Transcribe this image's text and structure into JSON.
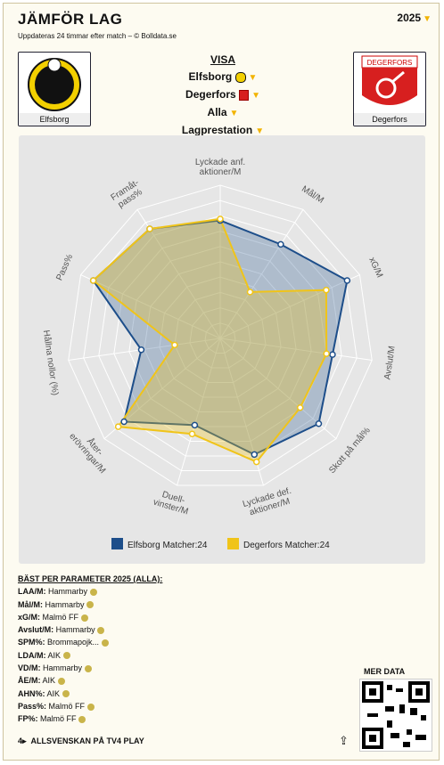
{
  "header": {
    "title": "JÄMFÖR LAG",
    "subtitle": "Uppdateras 24 timmar efter match – © Bolldata.se",
    "year": "2025"
  },
  "teams": {
    "left": {
      "name": "Elfsborg",
      "logo_text": "Elfsborg"
    },
    "right": {
      "name": "Degerfors",
      "logo_text": "DEGERFORS"
    }
  },
  "visa": {
    "heading": "VISA",
    "team1": "Elfsborg",
    "team2": "Degerfors",
    "filter": "Alla",
    "mode": "Lagprestation"
  },
  "chart_data": {
    "type": "radar",
    "axes": [
      "Lyckade anf. aktioner/M",
      "Mål/M",
      "xG/M",
      "Avslut/M",
      "Skott på mål%",
      "Lyckade def. aktioner/M",
      "Duell-vinster/M",
      "Åter-erövringar/M",
      "Hållna nollor (%)",
      "Pass%",
      "Framåt-pass%"
    ],
    "rmax": 10,
    "series": [
      {
        "name": "Elfsborg Matcher:24",
        "color": "#1d4e8a",
        "values": [
          7.7,
          7.3,
          9.1,
          7.4,
          8.5,
          7.9,
          5.9,
          8.3,
          5.2,
          9.1,
          8.5
        ]
      },
      {
        "name": "Degerfors Matcher:24",
        "color": "#f0c419",
        "values": [
          7.8,
          3.6,
          7.6,
          7.0,
          6.9,
          8.4,
          6.5,
          8.8,
          3.0,
          9.1,
          8.5
        ]
      }
    ],
    "grid": true,
    "legend": "bottom"
  },
  "best": {
    "heading": "BÄST PER PARAMETER 2025 (ALLA):",
    "items": [
      {
        "label": "LAA/M:",
        "team": "Hammarby"
      },
      {
        "label": "Mål/M:",
        "team": "Hammarby"
      },
      {
        "label": "xG/M:",
        "team": "Malmö FF"
      },
      {
        "label": "Avslut/M:",
        "team": "Hammarby"
      },
      {
        "label": "SPM%:",
        "team": "Brommapojk..."
      },
      {
        "label": "LDA/M:",
        "team": "AIK"
      },
      {
        "label": "VD/M:",
        "team": "Hammarby"
      },
      {
        "label": "ÅE/M:",
        "team": "AIK"
      },
      {
        "label": "AHN%:",
        "team": "AIK"
      },
      {
        "label": "Pass%:",
        "team": "Malmö FF"
      },
      {
        "label": "FP%:",
        "team": "Malmö FF"
      }
    ]
  },
  "more": {
    "label": "MER DATA"
  },
  "footer": {
    "text": "ALLSVENSKAN PÅ TV4 PLAY"
  }
}
